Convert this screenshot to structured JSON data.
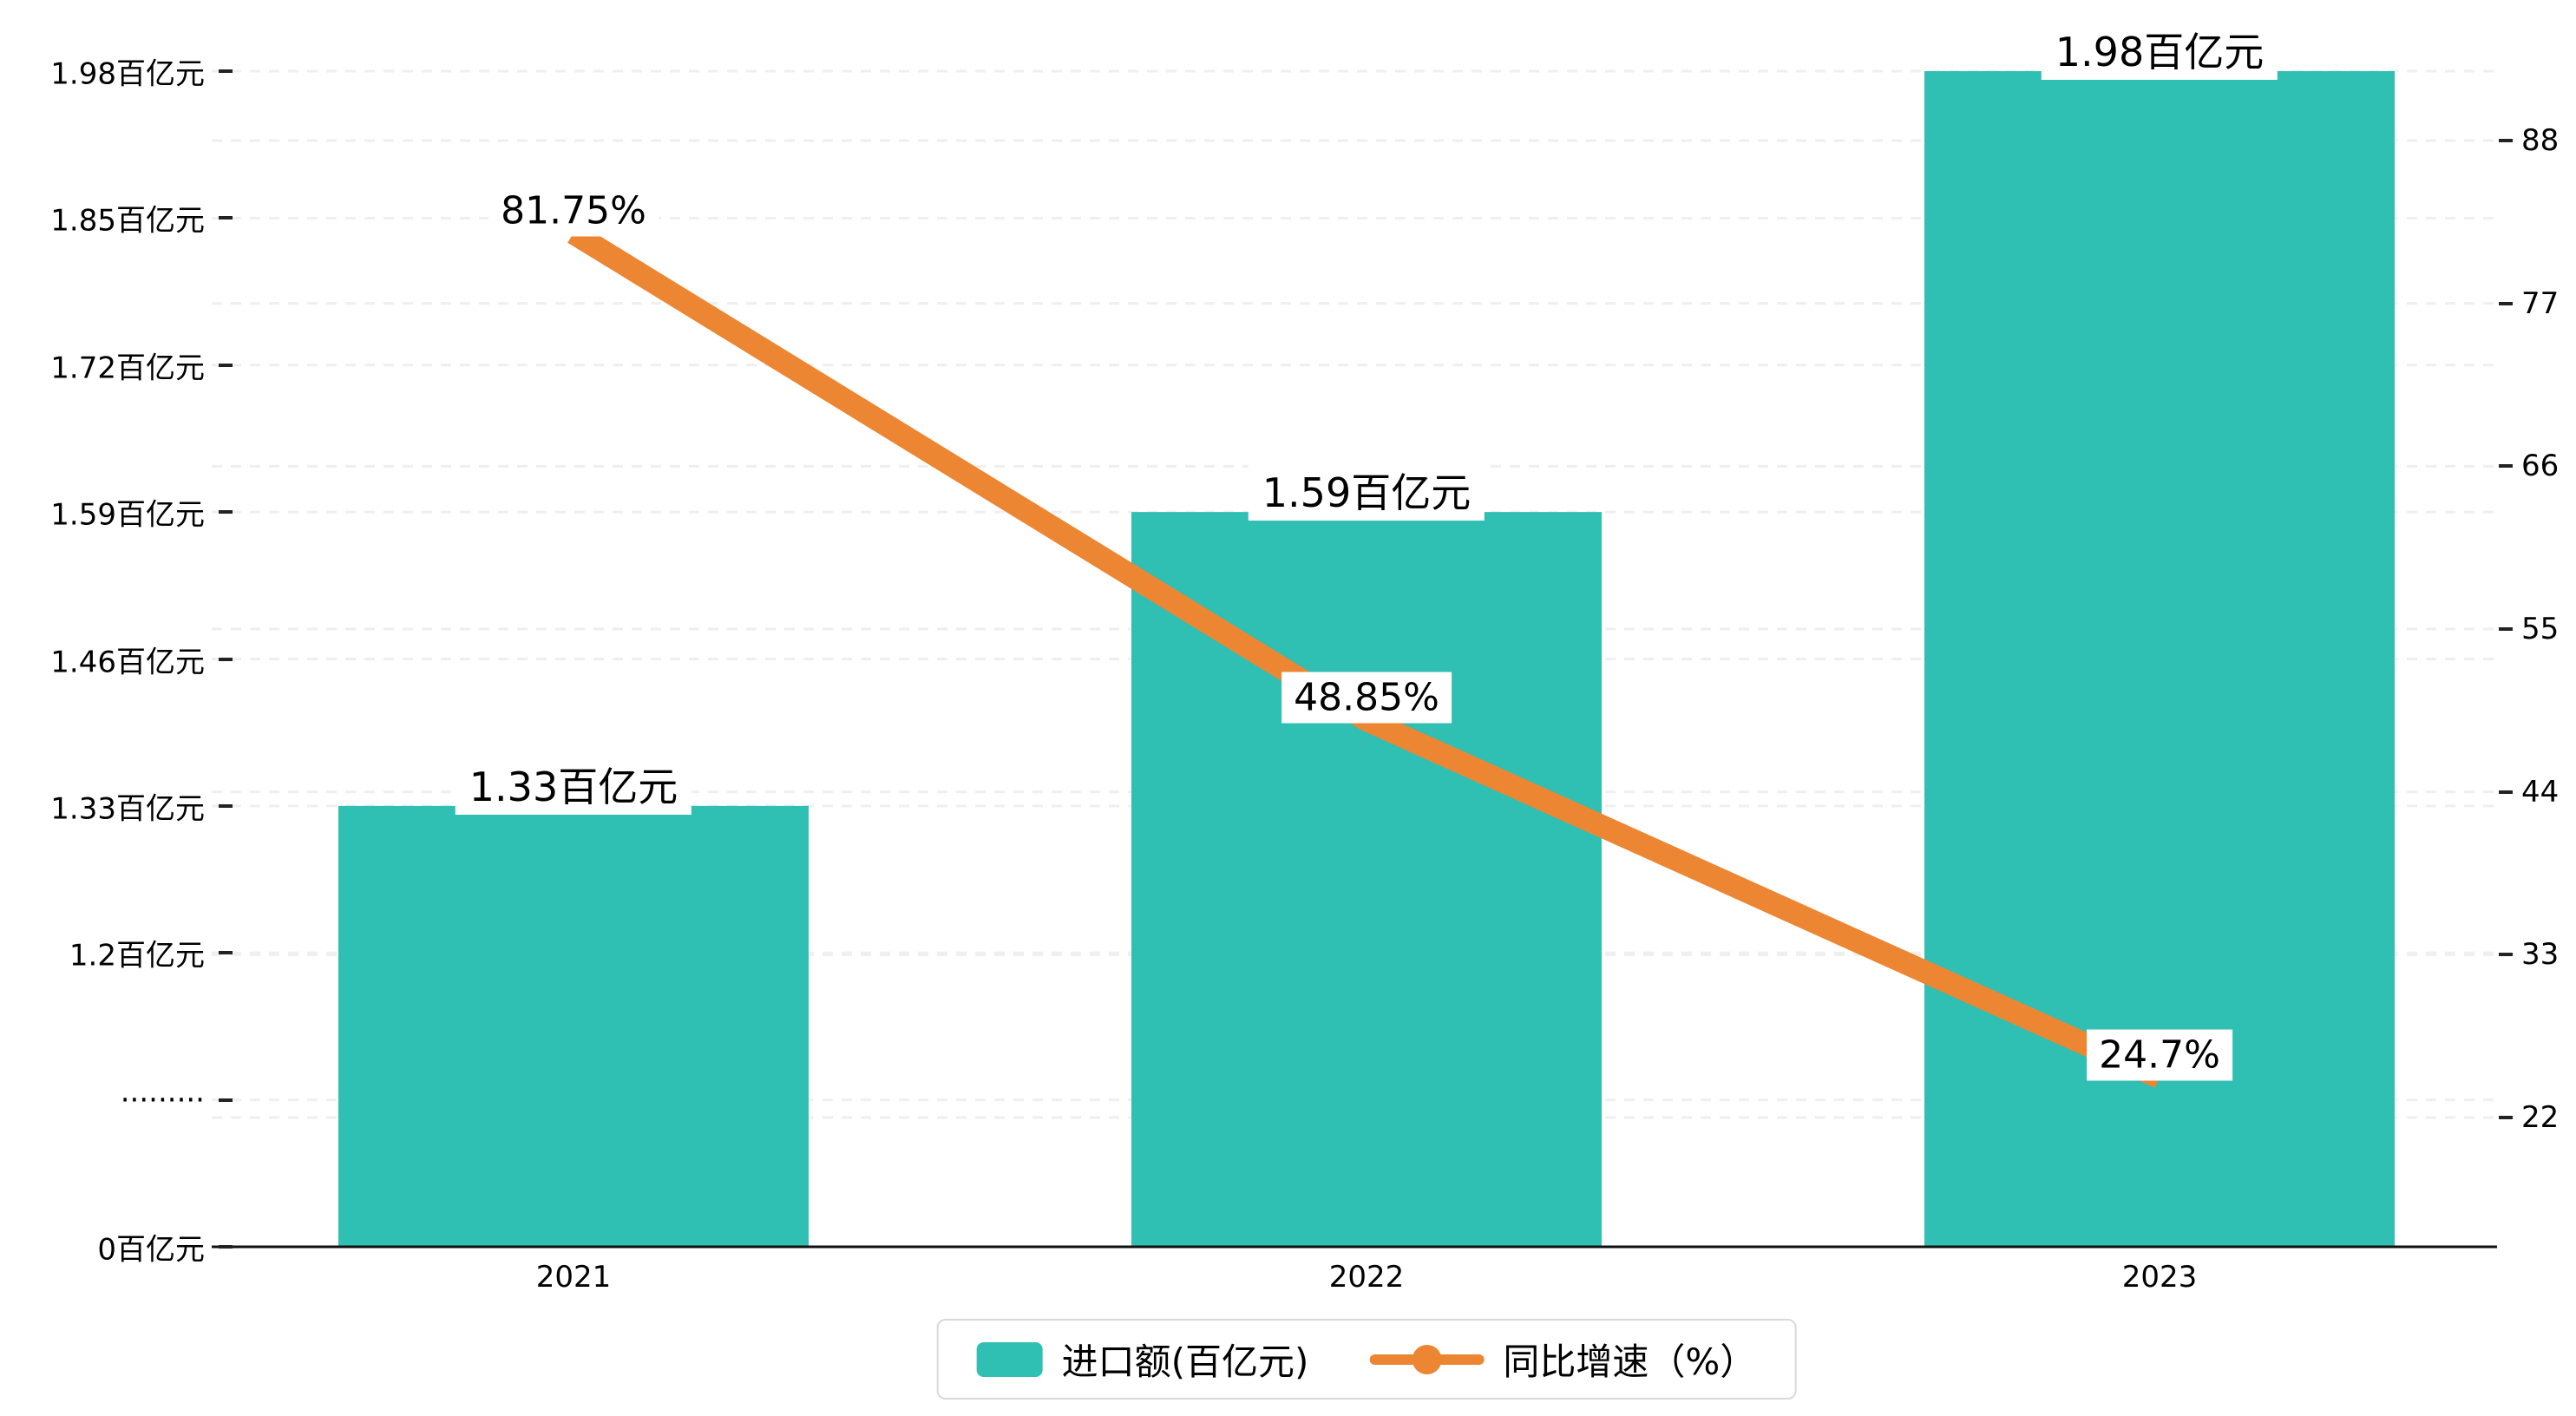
{
  "chart_data": {
    "type": "bar",
    "subtype": "bar-line-combo",
    "categories": [
      "2021",
      "2022",
      "2023"
    ],
    "series": [
      {
        "name": "进口额(百亿元)",
        "type": "bar",
        "axis": "left",
        "values": [
          1.33,
          1.59,
          1.98
        ],
        "data_labels": [
          "1.33百亿元",
          "1.59百亿元",
          "1.98百亿元"
        ],
        "color": "#30bfb3"
      },
      {
        "name": "同比增速（%）",
        "type": "line",
        "axis": "right",
        "values": [
          81.75,
          48.85,
          24.7
        ],
        "data_labels": [
          "81.75%",
          "48.85%",
          "24.7%"
        ],
        "color": "#ec8633"
      }
    ],
    "left_axis": {
      "unit": "百亿元",
      "tick_labels": [
        "1.98百亿元",
        "1.85百亿元",
        "1.72百亿元",
        "1.59百亿元",
        "1.46百亿元",
        "1.33百亿元",
        "1.2百亿元",
        "·········",
        "0百亿元"
      ],
      "axis_break": true,
      "break_value": 1.2,
      "top_value": 1.98,
      "bottom_value": 0
    },
    "right_axis": {
      "tick_labels": [
        "88",
        "77",
        "66",
        "55",
        "44",
        "33",
        "22"
      ],
      "max": 88,
      "min": 22
    },
    "legend": [
      {
        "label": "进口额(百亿元)",
        "marker": "bar-swatch",
        "color": "#30bfb3"
      },
      {
        "label": "同比增速（%）",
        "marker": "line-dot",
        "color": "#ec8633"
      }
    ],
    "grid": {
      "horizontal_dashed": true,
      "legend_position": "bottom-center"
    }
  },
  "colors": {
    "bar": "#30bfb3",
    "line": "#ec8633",
    "grid_line": "#efefef",
    "axis_line": "#111111",
    "text": "#000000",
    "label_bg": "#ffffff",
    "legend_border": "#d9d9d9",
    "background": "#ffffff"
  }
}
